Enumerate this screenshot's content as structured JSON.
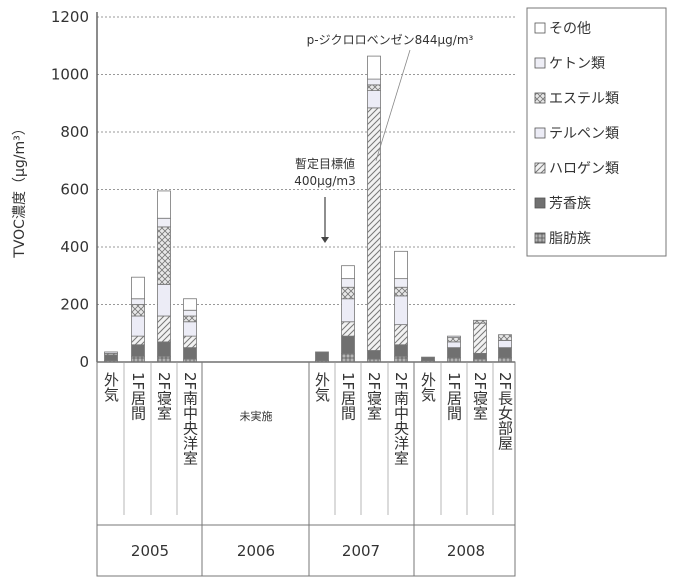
{
  "chart_data": {
    "type": "bar",
    "stacked": true,
    "ylabel": "TVOC濃度（μg/m³）",
    "ylim": [
      0,
      1200
    ],
    "yticks": [
      0,
      200,
      400,
      600,
      800,
      1000,
      1200
    ],
    "grid": true,
    "legend_position": "right",
    "categories": [
      {
        "label": "外気",
        "group": "2005"
      },
      {
        "label": "1F居間",
        "group": "2005"
      },
      {
        "label": "2F寝室",
        "group": "2005"
      },
      {
        "label": "2F南中央洋室",
        "group": "2005"
      },
      {
        "label": "外気",
        "group": "2007"
      },
      {
        "label": "1F居間",
        "group": "2007"
      },
      {
        "label": "2F寝室",
        "group": "2007"
      },
      {
        "label": "2F南中央洋室",
        "group": "2007"
      },
      {
        "label": "外気",
        "group": "2008"
      },
      {
        "label": "1F居間",
        "group": "2008"
      },
      {
        "label": "2F寝室",
        "group": "2008"
      },
      {
        "label": "2F長女部屋",
        "group": "2008"
      }
    ],
    "groups": [
      "2005",
      "2006",
      "2007",
      "2008"
    ],
    "no_data_note": "未実施",
    "series": [
      {
        "name": "脂肪族",
        "color": "#9a9a9a",
        "pattern": "cross",
        "values": [
          5,
          20,
          20,
          10,
          5,
          30,
          10,
          20,
          5,
          15,
          10,
          15
        ]
      },
      {
        "name": "芳香族",
        "color": "#6e6e6e",
        "pattern": "solid",
        "values": [
          20,
          40,
          50,
          40,
          30,
          60,
          30,
          40,
          12,
          35,
          20,
          35
        ]
      },
      {
        "name": "ハロゲン類",
        "color": "#d4d4d4",
        "pattern": "diagonal",
        "values": [
          5,
          30,
          90,
          40,
          0,
          50,
          844,
          70,
          0,
          0,
          105,
          0
        ]
      },
      {
        "name": "テルペン類",
        "color": "#ebebf5",
        "pattern": "solid",
        "values": [
          5,
          70,
          110,
          50,
          0,
          80,
          60,
          100,
          0,
          20,
          0,
          25
        ]
      },
      {
        "name": "エステル類",
        "color": "#c8c8c8",
        "pattern": "xhatch",
        "values": [
          0,
          40,
          200,
          20,
          0,
          40,
          20,
          30,
          0,
          15,
          10,
          20
        ]
      },
      {
        "name": "ケトン類",
        "color": "#ededf5",
        "pattern": "solid",
        "values": [
          0,
          20,
          30,
          20,
          0,
          30,
          20,
          30,
          0,
          5,
          0,
          0
        ]
      },
      {
        "name": "その他",
        "color": "#ffffff",
        "pattern": "solid",
        "values": [
          0,
          75,
          95,
          40,
          0,
          45,
          80,
          95,
          0,
          0,
          0,
          0
        ]
      }
    ],
    "annotations": [
      {
        "text": "暫定目標値",
        "text2": "400μg/m3",
        "value": 400
      },
      {
        "text": "p-ジクロロベンゼン844μg/m³",
        "category_index": 6,
        "value": 844
      }
    ]
  }
}
